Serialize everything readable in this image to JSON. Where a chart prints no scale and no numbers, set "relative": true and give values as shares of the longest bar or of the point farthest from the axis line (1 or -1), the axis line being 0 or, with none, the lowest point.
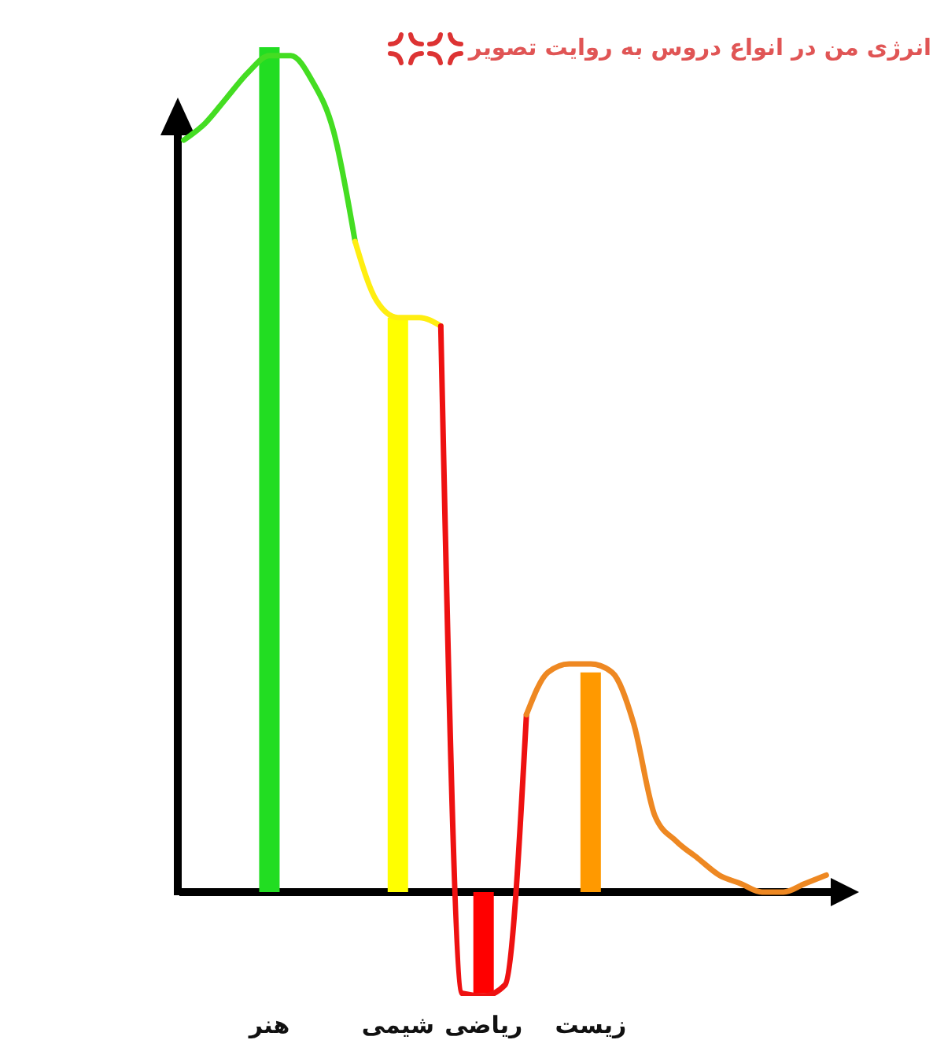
{
  "chart_data": {
    "type": "bar",
    "title": "انرژی من در انواع دروس به روایت تصویر",
    "relative": true,
    "categories": [
      null,
      null,
      null,
      null,
      "هنر",
      null,
      null,
      null,
      null,
      null,
      "شیمی",
      null,
      null,
      null,
      "ریاضی",
      null,
      null,
      null,
      null,
      "زیست",
      null,
      null,
      null,
      null,
      null,
      null,
      null,
      null,
      null,
      null,
      null
    ],
    "series": [
      {
        "colors": [
          null,
          null,
          null,
          null,
          "#22dd22",
          null,
          null,
          null,
          null,
          null,
          "#ffff00",
          null,
          null,
          null,
          "#ff0000",
          null,
          null,
          null,
          null,
          "#ff9900",
          null,
          null,
          null,
          null,
          null,
          null,
          null,
          null,
          null,
          null,
          null
        ],
        "values": [
          null,
          null,
          null,
          null,
          1,
          null,
          null,
          null,
          null,
          null,
          0.68,
          null,
          null,
          null,
          -0.12,
          null,
          null,
          null,
          null,
          0.26,
          null,
          null,
          null,
          null,
          null,
          null,
          null,
          null,
          null,
          null,
          null
        ]
      },
      {
        "type": "line",
        "color": "#44dd22",
        "values": [
          0.89,
          0.91,
          0.94,
          0.97,
          0.99,
          0.99,
          0.96,
          0.9,
          0.77,
          null,
          null,
          null,
          null,
          null,
          null,
          null,
          null,
          null,
          null,
          null,
          null,
          null,
          null,
          null,
          null,
          null,
          null,
          null,
          null,
          null,
          null
        ]
      },
      {
        "type": "line",
        "color": "#ffee11",
        "values": [
          null,
          null,
          null,
          null,
          null,
          null,
          null,
          null,
          0.77,
          0.7,
          0.68,
          0.68,
          0.67,
          null,
          null,
          null,
          null,
          null,
          null,
          null,
          null,
          null,
          null,
          null,
          null,
          null,
          null,
          null,
          null,
          null,
          null
        ]
      },
      {
        "type": "line",
        "color": "#ee1111",
        "values": [
          null,
          null,
          null,
          null,
          null,
          null,
          null,
          null,
          null,
          null,
          null,
          null,
          0.67,
          -0.12,
          -0.123,
          -0.11,
          0.21,
          null,
          null,
          null,
          null,
          null,
          null,
          null,
          null,
          null,
          null,
          null,
          null,
          null,
          null
        ]
      },
      {
        "type": "line",
        "color": "#ee8822",
        "values": [
          null,
          null,
          null,
          null,
          null,
          null,
          null,
          null,
          null,
          null,
          null,
          null,
          null,
          null,
          null,
          null,
          0.21,
          0.26,
          0.27,
          0.27,
          0.26,
          0.2,
          0.09,
          0.06,
          0.04,
          0.02,
          0.01,
          0,
          0,
          0.01,
          0.02
        ]
      }
    ]
  }
}
